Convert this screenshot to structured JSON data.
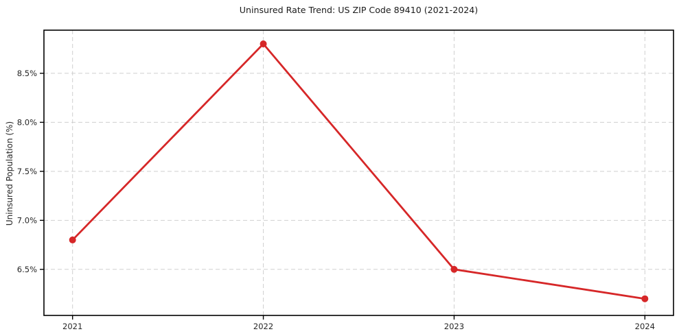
{
  "chart_data": {
    "type": "line",
    "title": "Uninsured Rate Trend: US ZIP Code 89410 (2021-2024)",
    "xlabel": "",
    "ylabel": "Uninsured Population (%)",
    "x": [
      2021,
      2022,
      2023,
      2024
    ],
    "values": [
      6.8,
      8.8,
      6.5,
      6.2
    ],
    "xticks": {
      "values": [
        2021,
        2022,
        2023,
        2024
      ],
      "labels": [
        "2021",
        "2022",
        "2023",
        "2024"
      ]
    },
    "yticks": {
      "values": [
        6.5,
        7.0,
        7.5,
        8.0,
        8.5
      ],
      "labels": [
        "6.5%",
        "7.0%",
        "7.5%",
        "8.0%",
        "8.5%"
      ]
    },
    "xlim": [
      2020.85,
      2024.15
    ],
    "ylim": [
      6.03,
      8.94
    ],
    "grid": true,
    "grid_style": "dashed",
    "legend": "none",
    "colors": {
      "line": "#d62728",
      "marker": "#d62728",
      "grid": "#cfcfcf",
      "spine": "#000000",
      "tick": "#000000",
      "tick_label": "#262626",
      "title": "#1a1a1a",
      "background": "#ffffff"
    }
  }
}
